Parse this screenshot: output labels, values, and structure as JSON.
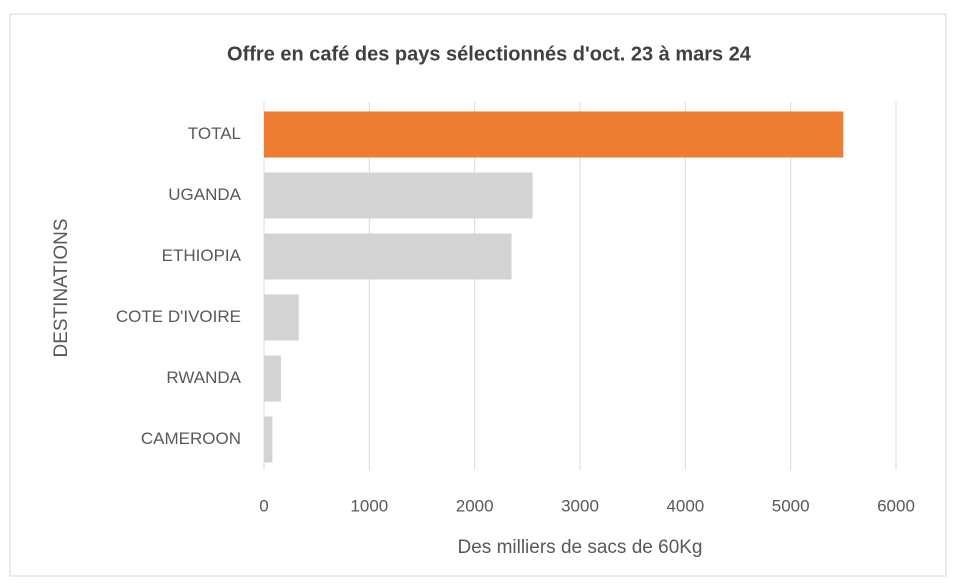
{
  "chart_data": {
    "type": "hbar",
    "title": "Offre en café des pays sélectionnés d'oct. 23 à mars 24",
    "categories": [
      "TOTAL",
      "UGANDA",
      "ETHIOPIA",
      "COTE D'IVOIRE",
      "RWANDA",
      "CAMEROON"
    ],
    "values": [
      5500,
      2550,
      2350,
      330,
      160,
      80
    ],
    "colors": [
      "#ed7d31",
      "#d3d3d3",
      "#d3d3d3",
      "#d3d3d3",
      "#d3d3d3",
      "#d3d3d3"
    ],
    "xlim": [
      0,
      6000
    ],
    "xticks": [
      0,
      1000,
      2000,
      3000,
      4000,
      5000,
      6000
    ],
    "xlabel": "Des milliers de sacs de 60Kg",
    "ylabel": "DESTINATIONS",
    "grid": true
  }
}
